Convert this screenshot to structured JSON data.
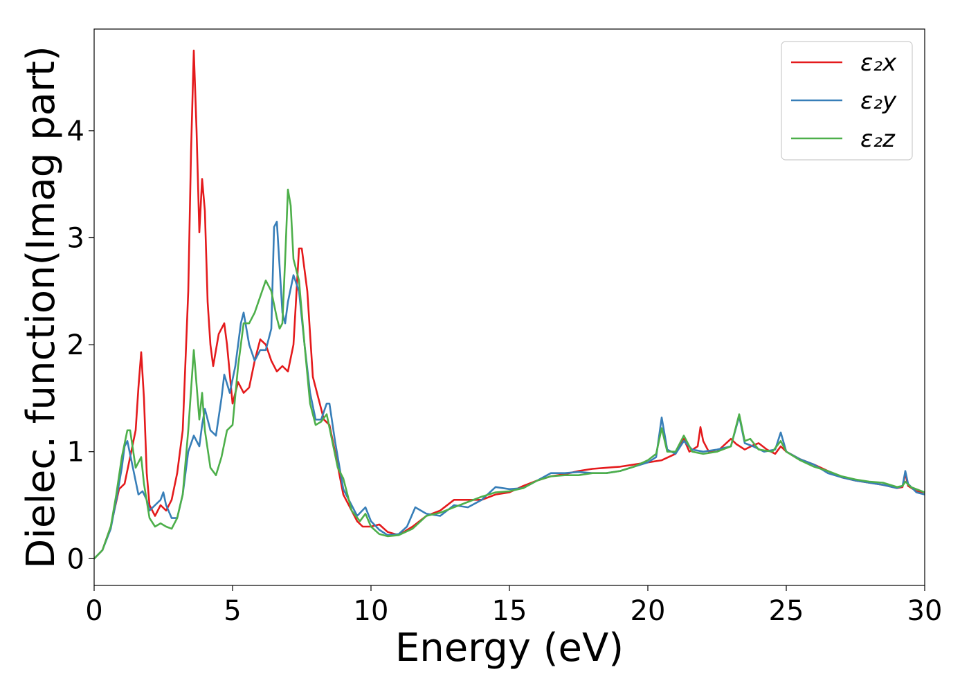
{
  "chart_data": {
    "type": "line",
    "title": "",
    "xlabel": "Energy (eV)",
    "ylabel": "Dielec. function(Imag part)",
    "xlim": [
      0,
      30
    ],
    "ylim": [
      -0.25,
      4.95
    ],
    "xticks": [
      0,
      5,
      10,
      15,
      20,
      25,
      30
    ],
    "yticks": [
      0,
      1,
      2,
      3,
      4
    ],
    "grid": false,
    "legend_position": "top-right",
    "series": [
      {
        "name": "ε₂x",
        "color": "#e41a1c",
        "points": [
          [
            0,
            0
          ],
          [
            0.3,
            0.08
          ],
          [
            0.6,
            0.3
          ],
          [
            0.9,
            0.65
          ],
          [
            1.1,
            0.7
          ],
          [
            1.3,
            0.95
          ],
          [
            1.5,
            1.2
          ],
          [
            1.6,
            1.6
          ],
          [
            1.7,
            1.93
          ],
          [
            1.8,
            1.5
          ],
          [
            1.9,
            0.8
          ],
          [
            2.0,
            0.5
          ],
          [
            2.2,
            0.4
          ],
          [
            2.4,
            0.5
          ],
          [
            2.6,
            0.45
          ],
          [
            2.8,
            0.55
          ],
          [
            3.0,
            0.8
          ],
          [
            3.2,
            1.2
          ],
          [
            3.4,
            2.5
          ],
          [
            3.5,
            3.8
          ],
          [
            3.6,
            4.75
          ],
          [
            3.7,
            4.0
          ],
          [
            3.8,
            3.05
          ],
          [
            3.9,
            3.55
          ],
          [
            4.0,
            3.25
          ],
          [
            4.1,
            2.4
          ],
          [
            4.2,
            2.0
          ],
          [
            4.3,
            1.8
          ],
          [
            4.5,
            2.1
          ],
          [
            4.7,
            2.2
          ],
          [
            4.8,
            2.0
          ],
          [
            5.0,
            1.45
          ],
          [
            5.2,
            1.65
          ],
          [
            5.4,
            1.55
          ],
          [
            5.6,
            1.6
          ],
          [
            5.8,
            1.85
          ],
          [
            6.0,
            2.05
          ],
          [
            6.2,
            2.0
          ],
          [
            6.4,
            1.85
          ],
          [
            6.6,
            1.75
          ],
          [
            6.8,
            1.8
          ],
          [
            7.0,
            1.75
          ],
          [
            7.2,
            2.0
          ],
          [
            7.4,
            2.9
          ],
          [
            7.5,
            2.9
          ],
          [
            7.7,
            2.5
          ],
          [
            7.9,
            1.7
          ],
          [
            8.1,
            1.5
          ],
          [
            8.3,
            1.3
          ],
          [
            8.5,
            1.25
          ],
          [
            8.7,
            1.0
          ],
          [
            9.0,
            0.6
          ],
          [
            9.3,
            0.45
          ],
          [
            9.5,
            0.35
          ],
          [
            9.7,
            0.3
          ],
          [
            10.0,
            0.3
          ],
          [
            10.3,
            0.32
          ],
          [
            10.6,
            0.25
          ],
          [
            11.0,
            0.22
          ],
          [
            11.5,
            0.3
          ],
          [
            12.0,
            0.4
          ],
          [
            12.5,
            0.45
          ],
          [
            13.0,
            0.55
          ],
          [
            13.5,
            0.55
          ],
          [
            14.0,
            0.55
          ],
          [
            14.5,
            0.6
          ],
          [
            15.0,
            0.62
          ],
          [
            15.5,
            0.68
          ],
          [
            16.0,
            0.73
          ],
          [
            16.5,
            0.77
          ],
          [
            17.0,
            0.79
          ],
          [
            17.5,
            0.82
          ],
          [
            18.0,
            0.84
          ],
          [
            18.5,
            0.85
          ],
          [
            19.0,
            0.86
          ],
          [
            19.5,
            0.88
          ],
          [
            20.0,
            0.9
          ],
          [
            20.5,
            0.92
          ],
          [
            21.0,
            0.98
          ],
          [
            21.3,
            1.12
          ],
          [
            21.5,
            1.0
          ],
          [
            21.8,
            1.05
          ],
          [
            21.9,
            1.23
          ],
          [
            22.0,
            1.1
          ],
          [
            22.2,
            1.0
          ],
          [
            22.5,
            1.0
          ],
          [
            23.0,
            1.12
          ],
          [
            23.2,
            1.07
          ],
          [
            23.5,
            1.02
          ],
          [
            23.8,
            1.06
          ],
          [
            24.0,
            1.08
          ],
          [
            24.3,
            1.02
          ],
          [
            24.6,
            0.98
          ],
          [
            24.8,
            1.05
          ],
          [
            25.0,
            1.0
          ],
          [
            25.5,
            0.93
          ],
          [
            26.0,
            0.88
          ],
          [
            26.5,
            0.82
          ],
          [
            27.0,
            0.76
          ],
          [
            27.5,
            0.73
          ],
          [
            28.0,
            0.71
          ],
          [
            28.5,
            0.69
          ],
          [
            29.0,
            0.66
          ],
          [
            29.2,
            0.67
          ],
          [
            29.3,
            0.8
          ],
          [
            29.4,
            0.68
          ],
          [
            29.7,
            0.63
          ],
          [
            30,
            0.62
          ]
        ]
      },
      {
        "name": "ε₂y",
        "color": "#377eb8",
        "points": [
          [
            0,
            0
          ],
          [
            0.3,
            0.08
          ],
          [
            0.6,
            0.28
          ],
          [
            0.8,
            0.55
          ],
          [
            1.0,
            0.85
          ],
          [
            1.1,
            1.05
          ],
          [
            1.2,
            1.1
          ],
          [
            1.4,
            0.85
          ],
          [
            1.6,
            0.6
          ],
          [
            1.75,
            0.63
          ],
          [
            1.9,
            0.55
          ],
          [
            2.0,
            0.45
          ],
          [
            2.2,
            0.5
          ],
          [
            2.4,
            0.55
          ],
          [
            2.5,
            0.62
          ],
          [
            2.6,
            0.5
          ],
          [
            2.8,
            0.38
          ],
          [
            3.0,
            0.38
          ],
          [
            3.2,
            0.6
          ],
          [
            3.4,
            1.0
          ],
          [
            3.6,
            1.15
          ],
          [
            3.8,
            1.05
          ],
          [
            3.9,
            1.25
          ],
          [
            4.0,
            1.4
          ],
          [
            4.2,
            1.2
          ],
          [
            4.4,
            1.15
          ],
          [
            4.6,
            1.5
          ],
          [
            4.7,
            1.72
          ],
          [
            4.9,
            1.55
          ],
          [
            5.1,
            1.8
          ],
          [
            5.3,
            2.2
          ],
          [
            5.4,
            2.3
          ],
          [
            5.6,
            2.0
          ],
          [
            5.8,
            1.85
          ],
          [
            6.0,
            1.95
          ],
          [
            6.2,
            1.95
          ],
          [
            6.4,
            2.15
          ],
          [
            6.5,
            3.1
          ],
          [
            6.6,
            3.15
          ],
          [
            6.8,
            2.3
          ],
          [
            6.9,
            2.2
          ],
          [
            7.0,
            2.4
          ],
          [
            7.2,
            2.65
          ],
          [
            7.4,
            2.5
          ],
          [
            7.6,
            2.0
          ],
          [
            7.8,
            1.55
          ],
          [
            8.0,
            1.3
          ],
          [
            8.2,
            1.3
          ],
          [
            8.4,
            1.45
          ],
          [
            8.5,
            1.45
          ],
          [
            8.7,
            1.1
          ],
          [
            9.0,
            0.65
          ],
          [
            9.3,
            0.5
          ],
          [
            9.5,
            0.4
          ],
          [
            9.8,
            0.48
          ],
          [
            10.0,
            0.35
          ],
          [
            10.3,
            0.27
          ],
          [
            10.6,
            0.22
          ],
          [
            11.0,
            0.23
          ],
          [
            11.3,
            0.3
          ],
          [
            11.6,
            0.48
          ],
          [
            12.0,
            0.42
          ],
          [
            12.5,
            0.4
          ],
          [
            13.0,
            0.5
          ],
          [
            13.5,
            0.48
          ],
          [
            14.0,
            0.55
          ],
          [
            14.5,
            0.67
          ],
          [
            15.0,
            0.65
          ],
          [
            15.5,
            0.66
          ],
          [
            16.0,
            0.73
          ],
          [
            16.5,
            0.8
          ],
          [
            17.0,
            0.8
          ],
          [
            17.5,
            0.81
          ],
          [
            18.0,
            0.8
          ],
          [
            18.5,
            0.8
          ],
          [
            19.0,
            0.82
          ],
          [
            19.5,
            0.86
          ],
          [
            20.0,
            0.9
          ],
          [
            20.3,
            0.95
          ],
          [
            20.5,
            1.32
          ],
          [
            20.7,
            1.02
          ],
          [
            21.0,
            0.98
          ],
          [
            21.3,
            1.1
          ],
          [
            21.6,
            1.02
          ],
          [
            22.0,
            1.0
          ],
          [
            22.5,
            1.02
          ],
          [
            23.0,
            1.05
          ],
          [
            23.3,
            1.33
          ],
          [
            23.5,
            1.08
          ],
          [
            23.8,
            1.05
          ],
          [
            24.2,
            1.0
          ],
          [
            24.6,
            1.02
          ],
          [
            24.8,
            1.18
          ],
          [
            25.0,
            1.0
          ],
          [
            25.5,
            0.93
          ],
          [
            26.0,
            0.88
          ],
          [
            26.5,
            0.8
          ],
          [
            27.0,
            0.76
          ],
          [
            27.5,
            0.73
          ],
          [
            28.0,
            0.71
          ],
          [
            28.5,
            0.69
          ],
          [
            29.0,
            0.66
          ],
          [
            29.2,
            0.68
          ],
          [
            29.3,
            0.82
          ],
          [
            29.4,
            0.7
          ],
          [
            29.7,
            0.62
          ],
          [
            30,
            0.6
          ]
        ]
      },
      {
        "name": "ε₂z",
        "color": "#4daf4a",
        "points": [
          [
            0,
            0
          ],
          [
            0.3,
            0.08
          ],
          [
            0.6,
            0.3
          ],
          [
            0.8,
            0.6
          ],
          [
            1.0,
            0.95
          ],
          [
            1.2,
            1.2
          ],
          [
            1.3,
            1.2
          ],
          [
            1.5,
            0.85
          ],
          [
            1.6,
            0.9
          ],
          [
            1.7,
            0.95
          ],
          [
            1.8,
            0.7
          ],
          [
            2.0,
            0.38
          ],
          [
            2.2,
            0.3
          ],
          [
            2.4,
            0.33
          ],
          [
            2.6,
            0.3
          ],
          [
            2.8,
            0.28
          ],
          [
            3.0,
            0.38
          ],
          [
            3.2,
            0.6
          ],
          [
            3.4,
            1.2
          ],
          [
            3.6,
            1.95
          ],
          [
            3.8,
            1.3
          ],
          [
            3.9,
            1.55
          ],
          [
            4.0,
            1.2
          ],
          [
            4.2,
            0.85
          ],
          [
            4.4,
            0.78
          ],
          [
            4.6,
            0.95
          ],
          [
            4.8,
            1.2
          ],
          [
            5.0,
            1.25
          ],
          [
            5.2,
            1.8
          ],
          [
            5.4,
            2.2
          ],
          [
            5.6,
            2.2
          ],
          [
            5.8,
            2.3
          ],
          [
            6.0,
            2.45
          ],
          [
            6.2,
            2.6
          ],
          [
            6.4,
            2.5
          ],
          [
            6.6,
            2.25
          ],
          [
            6.7,
            2.15
          ],
          [
            6.8,
            2.2
          ],
          [
            6.9,
            2.8
          ],
          [
            7.0,
            3.45
          ],
          [
            7.1,
            3.3
          ],
          [
            7.2,
            2.8
          ],
          [
            7.4,
            2.6
          ],
          [
            7.6,
            2.0
          ],
          [
            7.8,
            1.45
          ],
          [
            8.0,
            1.25
          ],
          [
            8.2,
            1.28
          ],
          [
            8.4,
            1.35
          ],
          [
            8.6,
            1.1
          ],
          [
            8.8,
            0.85
          ],
          [
            9.0,
            0.75
          ],
          [
            9.3,
            0.45
          ],
          [
            9.6,
            0.35
          ],
          [
            9.8,
            0.42
          ],
          [
            10.0,
            0.3
          ],
          [
            10.3,
            0.23
          ],
          [
            10.6,
            0.21
          ],
          [
            11.0,
            0.22
          ],
          [
            11.5,
            0.28
          ],
          [
            12.0,
            0.4
          ],
          [
            12.5,
            0.43
          ],
          [
            13.0,
            0.48
          ],
          [
            13.5,
            0.53
          ],
          [
            14.0,
            0.58
          ],
          [
            14.5,
            0.62
          ],
          [
            15.0,
            0.63
          ],
          [
            15.5,
            0.66
          ],
          [
            16.0,
            0.73
          ],
          [
            16.5,
            0.77
          ],
          [
            17.0,
            0.78
          ],
          [
            17.5,
            0.78
          ],
          [
            18.0,
            0.8
          ],
          [
            18.5,
            0.8
          ],
          [
            19.0,
            0.82
          ],
          [
            19.5,
            0.86
          ],
          [
            20.0,
            0.92
          ],
          [
            20.3,
            0.98
          ],
          [
            20.5,
            1.22
          ],
          [
            20.7,
            1.0
          ],
          [
            21.0,
            1.0
          ],
          [
            21.3,
            1.15
          ],
          [
            21.6,
            1.0
          ],
          [
            22.0,
            0.98
          ],
          [
            22.5,
            1.0
          ],
          [
            23.0,
            1.05
          ],
          [
            23.3,
            1.35
          ],
          [
            23.5,
            1.1
          ],
          [
            23.7,
            1.12
          ],
          [
            24.0,
            1.02
          ],
          [
            24.5,
            1.0
          ],
          [
            24.8,
            1.1
          ],
          [
            25.0,
            1.0
          ],
          [
            25.5,
            0.92
          ],
          [
            26.0,
            0.86
          ],
          [
            26.5,
            0.82
          ],
          [
            27.0,
            0.77
          ],
          [
            27.5,
            0.74
          ],
          [
            28.0,
            0.72
          ],
          [
            28.5,
            0.71
          ],
          [
            29.0,
            0.67
          ],
          [
            29.2,
            0.68
          ],
          [
            29.3,
            0.72
          ],
          [
            29.5,
            0.67
          ],
          [
            30,
            0.62
          ]
        ]
      }
    ]
  }
}
